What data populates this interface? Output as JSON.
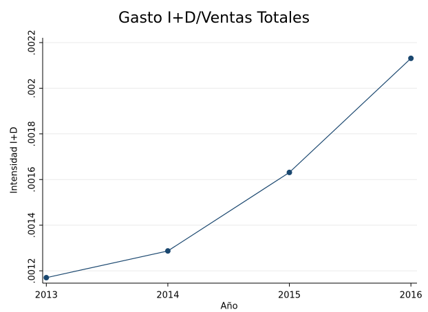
{
  "chart_data": {
    "type": "line",
    "title": "Gasto I+D/Ventas Totales",
    "xlabel": "Año",
    "ylabel": "Intensidad I+D",
    "x": [
      2013,
      2014,
      2015,
      2016
    ],
    "series": [
      {
        "name": "Intensidad I+D",
        "color": "#1a476f",
        "values": [
          0.00117,
          0.001287,
          0.001631,
          0.002131
        ]
      }
    ],
    "xlim": [
      2012.97,
      2016.05
    ],
    "xticks": [
      2013,
      2014,
      2015,
      2016
    ],
    "ylim": [
      0.001146,
      0.002221
    ],
    "yticks": [
      {
        "value": 0.0012,
        "label": ".0012"
      },
      {
        "value": 0.0014,
        "label": ".0014"
      },
      {
        "value": 0.0016,
        "label": ".0016"
      },
      {
        "value": 0.0018,
        "label": ".0018"
      },
      {
        "value": 0.002,
        "label": ".002"
      },
      {
        "value": 0.0022,
        "label": ".0022"
      }
    ],
    "grid": true
  }
}
